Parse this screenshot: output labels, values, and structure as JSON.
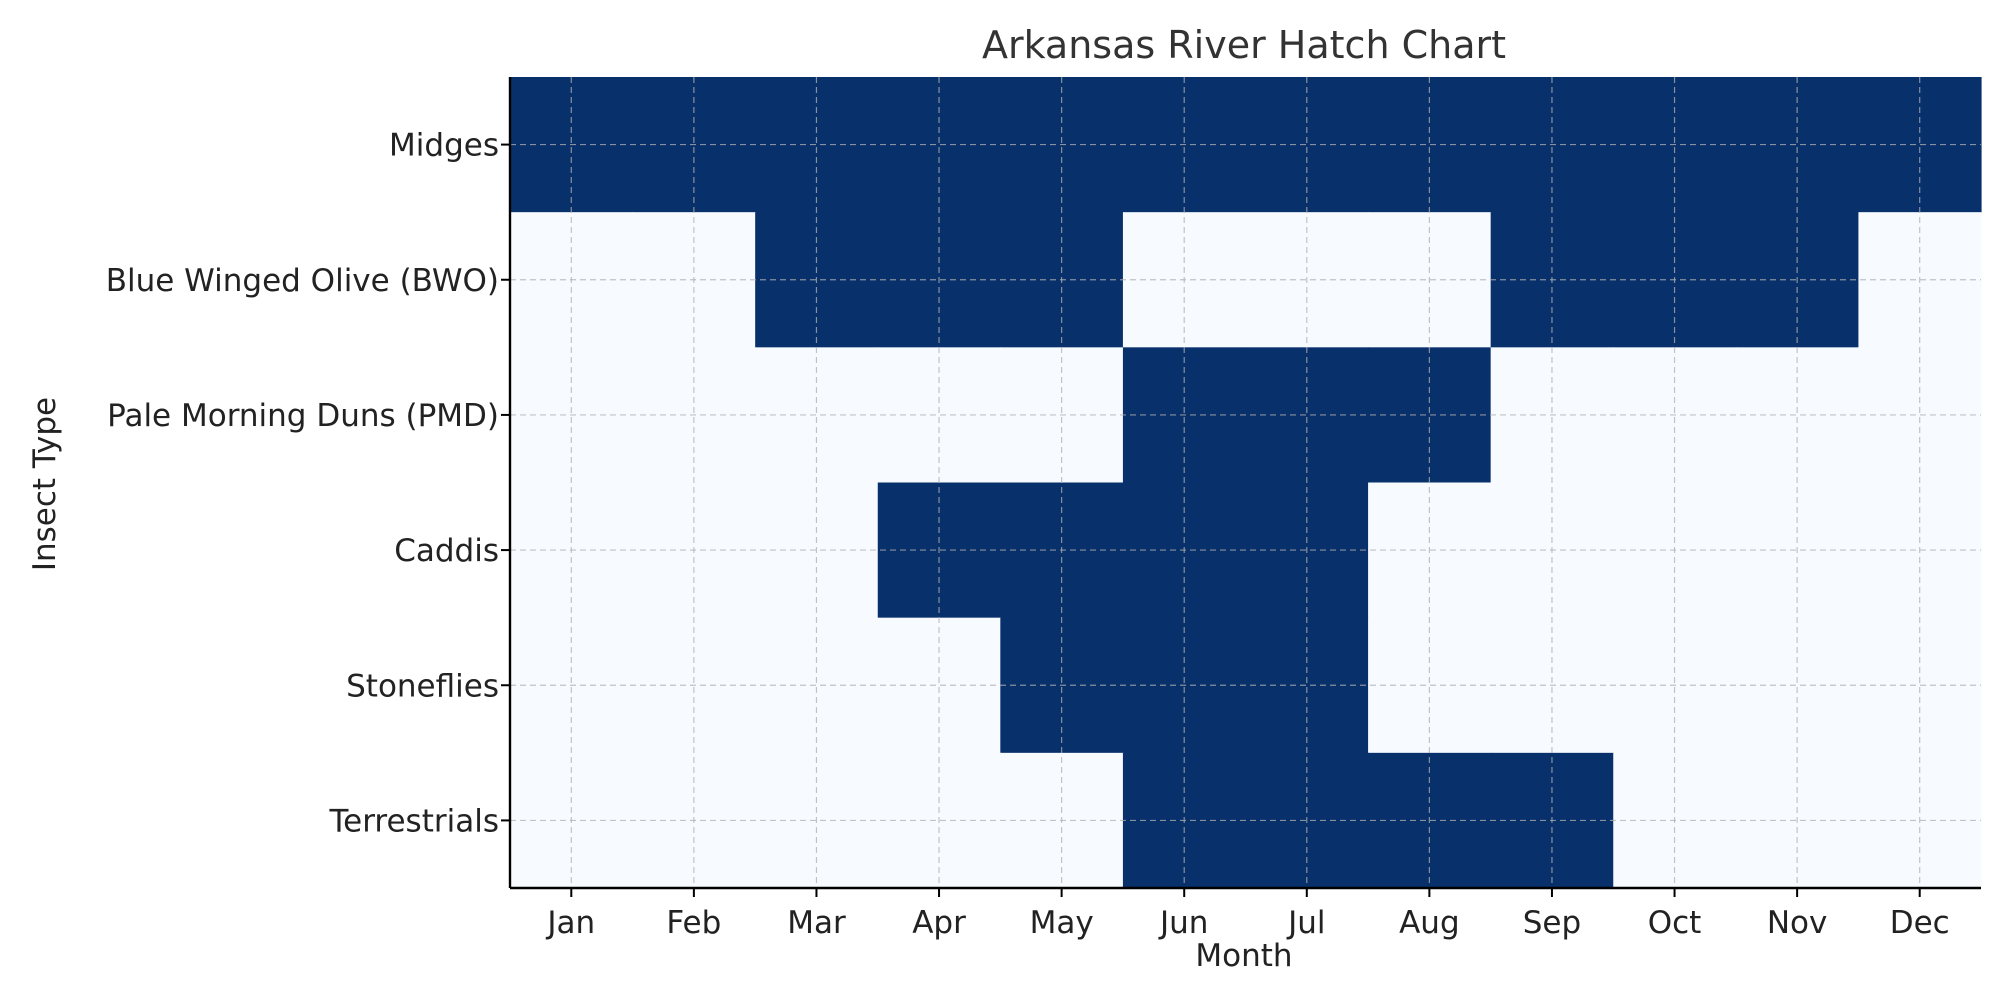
{
  "chart_data": {
    "type": "heatmap",
    "title": "Arkansas River Hatch Chart",
    "xlabel": "Month",
    "ylabel": "Insect Type",
    "x_categories": [
      "Jan",
      "Feb",
      "Mar",
      "Apr",
      "May",
      "Jun",
      "Jul",
      "Aug",
      "Sep",
      "Oct",
      "Nov",
      "Dec"
    ],
    "y_categories": [
      "Midges",
      "Blue Winged Olive (BWO)",
      "Pale Morning Duns (PMD)",
      "Caddis",
      "Stoneflies",
      "Terrestrials"
    ],
    "values": [
      [
        1,
        1,
        1,
        1,
        1,
        1,
        1,
        1,
        1,
        1,
        1,
        1
      ],
      [
        0,
        0,
        1,
        1,
        1,
        0,
        0,
        0,
        1,
        1,
        1,
        0
      ],
      [
        0,
        0,
        0,
        0,
        0,
        1,
        1,
        1,
        0,
        0,
        0,
        0
      ],
      [
        0,
        0,
        0,
        1,
        1,
        1,
        1,
        0,
        0,
        0,
        0,
        0
      ],
      [
        0,
        0,
        0,
        0,
        1,
        1,
        1,
        0,
        0,
        0,
        0,
        0
      ],
      [
        0,
        0,
        0,
        0,
        0,
        1,
        1,
        1,
        1,
        0,
        0,
        0
      ]
    ],
    "colors": {
      "active": "#08306b",
      "inactive": "#f7fbff",
      "grid": "#b0b0b0",
      "axis": "#000000"
    },
    "grid": true,
    "legend": false
  }
}
